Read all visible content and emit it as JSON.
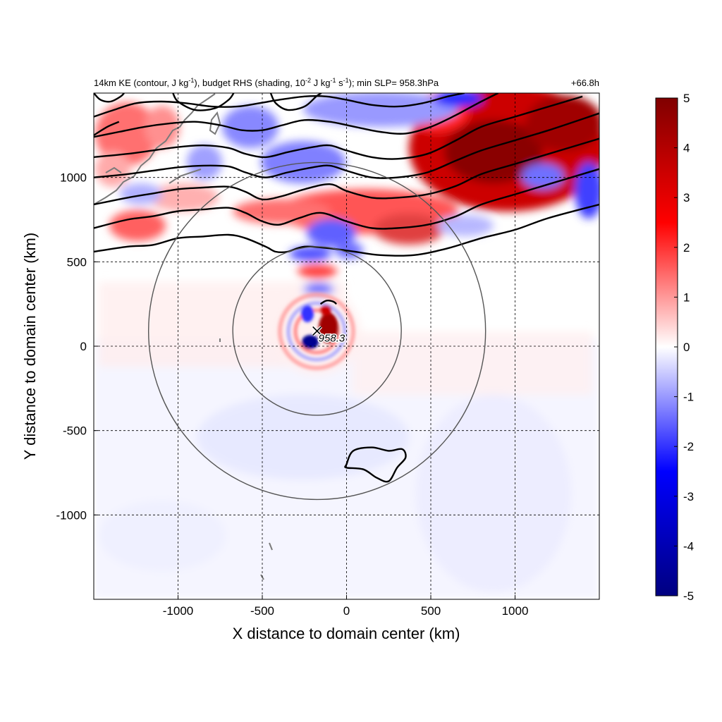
{
  "chart_data": {
    "type": "heatmap",
    "title": {
      "prefix": "14km KE (contour, J kg",
      "kg_exp": "-1",
      "middle": "), budget RHS (shading, 10",
      "scale_exp": "-2",
      "units_a": " J kg",
      "units_b": " s",
      "suffix": "); min SLP= 958.3hPa",
      "time": "+66.8h"
    },
    "xlabel": "X distance to domain center (km)",
    "ylabel": "Y distance to domain center (km)",
    "xlim": [
      -1500,
      1500
    ],
    "ylim": [
      -1500,
      1500
    ],
    "x_ticks": [
      -1000,
      -500,
      0,
      500,
      1000
    ],
    "y_ticks": [
      -1000,
      -500,
      0,
      500,
      1000
    ],
    "grid": "dashed",
    "colorbar": {
      "min": -5,
      "max": 5,
      "ticks": [
        "5",
        "4",
        "3",
        "2",
        "1",
        "0",
        "-1",
        "-2",
        "-3",
        "-4",
        "-5"
      ],
      "colormap": [
        "#000080",
        "#0000ff",
        "#ffffff",
        "#ff0000",
        "#800000"
      ]
    },
    "storm": {
      "center_x": -175,
      "center_y": 90,
      "min_slp_label": "958.3"
    },
    "rings_radius_km": [
      500,
      1000
    ],
    "ke_contours": [
      {
        "name": "ke-contour-1",
        "points": [
          [
            -1500,
            560
          ],
          [
            -1300,
            590
          ],
          [
            -1150,
            600
          ],
          [
            -1000,
            640
          ],
          [
            -850,
            650
          ],
          [
            -700,
            660
          ],
          [
            -600,
            640
          ],
          [
            -480,
            590
          ],
          [
            -420,
            560
          ],
          [
            -350,
            560
          ],
          [
            -250,
            590
          ],
          [
            -100,
            580
          ],
          [
            50,
            560
          ],
          [
            200,
            540
          ],
          [
            400,
            540
          ],
          [
            600,
            580
          ],
          [
            800,
            640
          ],
          [
            1000,
            690
          ],
          [
            1200,
            760
          ],
          [
            1500,
            840
          ]
        ]
      },
      {
        "name": "ke-contour-2",
        "points": [
          [
            -1500,
            700
          ],
          [
            -1300,
            750
          ],
          [
            -1150,
            770
          ],
          [
            -1000,
            800
          ],
          [
            -850,
            810
          ],
          [
            -700,
            820
          ],
          [
            -600,
            790
          ],
          [
            -500,
            740
          ],
          [
            -400,
            720
          ],
          [
            -280,
            760
          ],
          [
            -150,
            790
          ],
          [
            0,
            740
          ],
          [
            150,
            700
          ],
          [
            300,
            700
          ],
          [
            480,
            720
          ],
          [
            650,
            770
          ],
          [
            800,
            840
          ],
          [
            1000,
            900
          ],
          [
            1200,
            960
          ],
          [
            1500,
            1050
          ]
        ]
      },
      {
        "name": "ke-contour-3",
        "points": [
          [
            -1500,
            840
          ],
          [
            -1300,
            880
          ],
          [
            -1150,
            905
          ],
          [
            -1000,
            930
          ],
          [
            -850,
            940
          ],
          [
            -700,
            945
          ],
          [
            -600,
            915
          ],
          [
            -500,
            870
          ],
          [
            -380,
            890
          ],
          [
            -250,
            930
          ],
          [
            -100,
            960
          ],
          [
            0,
            920
          ],
          [
            150,
            880
          ],
          [
            300,
            880
          ],
          [
            480,
            900
          ],
          [
            650,
            950
          ],
          [
            800,
            1020
          ],
          [
            1000,
            1080
          ],
          [
            1200,
            1140
          ],
          [
            1500,
            1230
          ]
        ]
      },
      {
        "name": "ke-contour-4",
        "points": [
          [
            -1500,
            1000
          ],
          [
            -1300,
            1020
          ],
          [
            -1150,
            1040
          ],
          [
            -1000,
            1060
          ],
          [
            -850,
            1070
          ],
          [
            -700,
            1065
          ],
          [
            -600,
            1030
          ],
          [
            -480,
            1000
          ],
          [
            -350,
            1030
          ],
          [
            -200,
            1060
          ],
          [
            -100,
            1070
          ],
          [
            0,
            1040
          ],
          [
            150,
            1000
          ],
          [
            300,
            1000
          ],
          [
            480,
            1030
          ],
          [
            650,
            1100
          ],
          [
            800,
            1160
          ],
          [
            1000,
            1220
          ],
          [
            1200,
            1280
          ],
          [
            1500,
            1380
          ]
        ]
      },
      {
        "name": "ke-contour-5",
        "points": [
          [
            -1500,
            1120
          ],
          [
            -1300,
            1140
          ],
          [
            -1150,
            1160
          ],
          [
            -1000,
            1180
          ],
          [
            -850,
            1190
          ],
          [
            -700,
            1175
          ],
          [
            -600,
            1140
          ],
          [
            -480,
            1120
          ],
          [
            -350,
            1150
          ],
          [
            -200,
            1180
          ],
          [
            -100,
            1190
          ],
          [
            0,
            1160
          ],
          [
            150,
            1120
          ],
          [
            300,
            1110
          ],
          [
            480,
            1140
          ],
          [
            650,
            1220
          ],
          [
            800,
            1300
          ],
          [
            1000,
            1360
          ],
          [
            1200,
            1420
          ],
          [
            1400,
            1480
          ]
        ]
      },
      {
        "name": "ke-contour-6",
        "points": [
          [
            -1500,
            1240
          ],
          [
            -1350,
            1270
          ],
          [
            -1200,
            1300
          ],
          [
            -1050,
            1320
          ],
          [
            -900,
            1330
          ],
          [
            -750,
            1310
          ],
          [
            -620,
            1280
          ],
          [
            -500,
            1280
          ],
          [
            -380,
            1310
          ],
          [
            -250,
            1340
          ],
          [
            -100,
            1330
          ],
          [
            50,
            1300
          ],
          [
            200,
            1270
          ],
          [
            350,
            1260
          ],
          [
            500,
            1300
          ],
          [
            650,
            1370
          ],
          [
            780,
            1440
          ],
          [
            900,
            1500
          ]
        ]
      },
      {
        "name": "ke-contour-7",
        "points": [
          [
            -1500,
            1360
          ],
          [
            -1380,
            1400
          ],
          [
            -1250,
            1440
          ],
          [
            -1100,
            1450
          ],
          [
            -950,
            1440
          ],
          [
            -800,
            1420
          ],
          [
            -650,
            1420
          ],
          [
            -520,
            1440
          ],
          [
            -400,
            1460
          ],
          [
            -250,
            1480
          ],
          [
            -120,
            1480
          ],
          [
            0,
            1460
          ],
          [
            150,
            1430
          ],
          [
            300,
            1420
          ],
          [
            450,
            1440
          ],
          [
            600,
            1480
          ],
          [
            700,
            1500
          ]
        ]
      },
      {
        "name": "ke-contour-8",
        "points": [
          [
            -450,
            1500
          ],
          [
            -420,
            1440
          ],
          [
            -350,
            1400
          ],
          [
            -250,
            1420
          ],
          [
            -180,
            1480
          ],
          [
            -150,
            1500
          ]
        ]
      },
      {
        "name": "ke-contour-9",
        "points": [
          [
            -1030,
            1500
          ],
          [
            -1000,
            1450
          ],
          [
            -900,
            1400
          ],
          [
            -780,
            1410
          ],
          [
            -700,
            1460
          ],
          [
            -670,
            1500
          ]
        ]
      },
      {
        "name": "ke-contour-10",
        "points": [
          [
            -1500,
            1250
          ],
          [
            -1420,
            1300
          ],
          [
            -1350,
            1330
          ]
        ]
      },
      {
        "name": "ke-contour-11",
        "points": [
          [
            -1500,
            1500
          ],
          [
            -1460,
            1460
          ],
          [
            -1400,
            1450
          ],
          [
            -1340,
            1480
          ],
          [
            -1320,
            1500
          ]
        ]
      }
    ],
    "ke_contours_closed": [
      {
        "name": "ke-contour-storm-arc",
        "points": [
          [
            -155,
            250
          ],
          [
            -120,
            270
          ],
          [
            -80,
            265
          ],
          [
            -60,
            250
          ]
        ]
      },
      {
        "name": "ke-contour-south-loop",
        "points": [
          [
            0,
            -700
          ],
          [
            40,
            -620
          ],
          [
            150,
            -600
          ],
          [
            250,
            -620
          ],
          [
            330,
            -610
          ],
          [
            350,
            -660
          ],
          [
            300,
            -720
          ],
          [
            250,
            -800
          ],
          [
            180,
            -780
          ],
          [
            100,
            -730
          ],
          [
            0,
            -720
          ]
        ]
      }
    ]
  }
}
